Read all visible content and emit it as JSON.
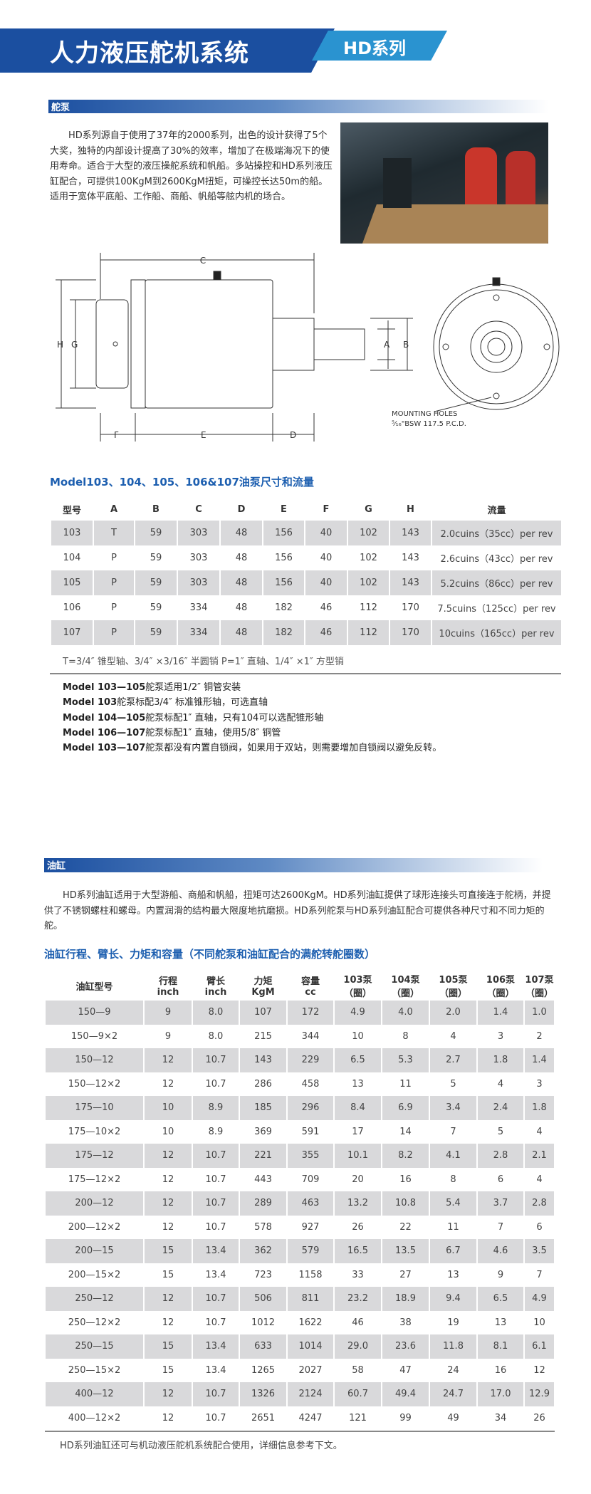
{
  "header": {
    "title": "人力液压舵机系统",
    "series_tab": "HD系列",
    "primary_color": "#1b4fa0",
    "accent_color": "#2a93d0"
  },
  "pump": {
    "section_label": "舵泵",
    "intro": "HD系列源自于使用了37年的2000系列，出色的设计获得了5个大奖，独特的内部设计提高了30%的效率，增加了在极端海况下的使用寿命。适合于大型的液压操舵系统和帆船。多站操控和HD系列液压缸配合，可提供100KgM到2600KgM扭矩，可操控长达50m的船。适用于宽体平底船、工作船、商船、帆船等舷内机的场合。",
    "drawing": {
      "labels": {
        "c": "C",
        "h": "H",
        "g": "G",
        "a": "A",
        "b": "B",
        "f": "F",
        "e": "E",
        "d": "D"
      },
      "mounting_line1": "MOUNTING HOLES",
      "mounting_line2": "⁵⁄₁₆\"BSW 117.5 P.C.D."
    },
    "table_title": "Model103、104、105、106&107油泵尺寸和流量",
    "columns": [
      "型号",
      "A",
      "B",
      "C",
      "D",
      "E",
      "F",
      "G",
      "H",
      "流量"
    ],
    "rows": [
      [
        "103",
        "T",
        "59",
        "303",
        "48",
        "156",
        "40",
        "102",
        "143",
        "2.0cuins（35cc）per rev"
      ],
      [
        "104",
        "P",
        "59",
        "303",
        "48",
        "156",
        "40",
        "102",
        "143",
        "2.6cuins（43cc）per rev"
      ],
      [
        "105",
        "P",
        "59",
        "303",
        "48",
        "156",
        "40",
        "102",
        "143",
        "5.2cuins（86cc）per rev"
      ],
      [
        "106",
        "P",
        "59",
        "334",
        "48",
        "182",
        "46",
        "112",
        "170",
        "7.5cuins（125cc）per rev"
      ],
      [
        "107",
        "P",
        "59",
        "334",
        "48",
        "182",
        "46",
        "112",
        "170",
        "10cuins（165cc）per rev"
      ]
    ],
    "legend": "T=3/4″ 锥型轴、3/4″ ×3/16″ 半圆销      P=1″ 直轴、1/4″ ×1″ 方型销",
    "notes": [
      {
        "model": "Model 103—105",
        "text": "舵泵适用1/2″ 铜管安装"
      },
      {
        "model": "Model 103",
        "text": "舵泵标配3/4″ 标准锥形轴，可选直轴"
      },
      {
        "model": "Model 104—105",
        "text": "舵泵标配1″ 直轴，只有104可以选配锥形轴"
      },
      {
        "model": "Model 106—107",
        "text": "舵泵标配1″ 直轴，使用5/8″ 铜管"
      },
      {
        "model": "Model 103—107",
        "text": "舵泵都没有内置自锁阀，如果用于双站，则需要增加自锁阀以避免反转。"
      }
    ]
  },
  "cylinder": {
    "section_label": "油缸",
    "intro": "HD系列油缸适用于大型游船、商船和帆船，扭矩可达2600KgM。HD系列油缸提供了球形连接头可直接连于舵柄，并提供了不锈钢螺柱和螺母。内置润滑的结构最大限度地抗磨损。HD系列舵泵与HD系列油缸配合可提供各种尺寸和不同力矩的舵。",
    "table_title": "油缸行程、臂长、力矩和容量（不同舵泵和油缸配合的满舵转舵圈数）",
    "columns": [
      [
        "油缸型号",
        ""
      ],
      [
        "行程",
        "inch"
      ],
      [
        "臂长",
        "inch"
      ],
      [
        "力矩",
        "KgM"
      ],
      [
        "容量",
        "cc"
      ],
      [
        "103泵",
        "（圈）"
      ],
      [
        "104泵",
        "（圈）"
      ],
      [
        "105泵",
        "（圈）"
      ],
      [
        "106泵",
        "（圈）"
      ],
      [
        "107泵",
        "（圈）"
      ]
    ],
    "rows": [
      [
        "150—9",
        "9",
        "8.0",
        "107",
        "172",
        "4.9",
        "4.0",
        "2.0",
        "1.4",
        "1.0"
      ],
      [
        "150—9×2",
        "9",
        "8.0",
        "215",
        "344",
        "10",
        "8",
        "4",
        "3",
        "2"
      ],
      [
        "150—12",
        "12",
        "10.7",
        "143",
        "229",
        "6.5",
        "5.3",
        "2.7",
        "1.8",
        "1.4"
      ],
      [
        "150—12×2",
        "12",
        "10.7",
        "286",
        "458",
        "13",
        "11",
        "5",
        "4",
        "3"
      ],
      [
        "175—10",
        "10",
        "8.9",
        "185",
        "296",
        "8.4",
        "6.9",
        "3.4",
        "2.4",
        "1.8"
      ],
      [
        "175—10×2",
        "10",
        "8.9",
        "369",
        "591",
        "17",
        "14",
        "7",
        "5",
        "4"
      ],
      [
        "175—12",
        "12",
        "10.7",
        "221",
        "355",
        "10.1",
        "8.2",
        "4.1",
        "2.8",
        "2.1"
      ],
      [
        "175—12×2",
        "12",
        "10.7",
        "443",
        "709",
        "20",
        "16",
        "8",
        "6",
        "4"
      ],
      [
        "200—12",
        "12",
        "10.7",
        "289",
        "463",
        "13.2",
        "10.8",
        "5.4",
        "3.7",
        "2.8"
      ],
      [
        "200—12×2",
        "12",
        "10.7",
        "578",
        "927",
        "26",
        "22",
        "11",
        "7",
        "6"
      ],
      [
        "200—15",
        "15",
        "13.4",
        "362",
        "579",
        "16.5",
        "13.5",
        "6.7",
        "4.6",
        "3.5"
      ],
      [
        "200—15×2",
        "15",
        "13.4",
        "723",
        "1158",
        "33",
        "27",
        "13",
        "9",
        "7"
      ],
      [
        "250—12",
        "12",
        "10.7",
        "506",
        "811",
        "23.2",
        "18.9",
        "9.4",
        "6.5",
        "4.9"
      ],
      [
        "250—12×2",
        "12",
        "10.7",
        "1012",
        "1622",
        "46",
        "38",
        "19",
        "13",
        "10"
      ],
      [
        "250—15",
        "15",
        "13.4",
        "633",
        "1014",
        "29.0",
        "23.6",
        "11.8",
        "8.1",
        "6.1"
      ],
      [
        "250—15×2",
        "15",
        "13.4",
        "1265",
        "2027",
        "58",
        "47",
        "24",
        "16",
        "12"
      ],
      [
        "400—12",
        "12",
        "10.7",
        "1326",
        "2124",
        "60.7",
        "49.4",
        "24.7",
        "17.0",
        "12.9"
      ],
      [
        "400—12×2",
        "12",
        "10.7",
        "2651",
        "4247",
        "121",
        "99",
        "49",
        "34",
        "26"
      ]
    ],
    "footer_note": "HD系列油缸还可与机动液压舵机系统配合使用，详细信息参考下文。"
  },
  "row_shade_color": "#d9d9db"
}
